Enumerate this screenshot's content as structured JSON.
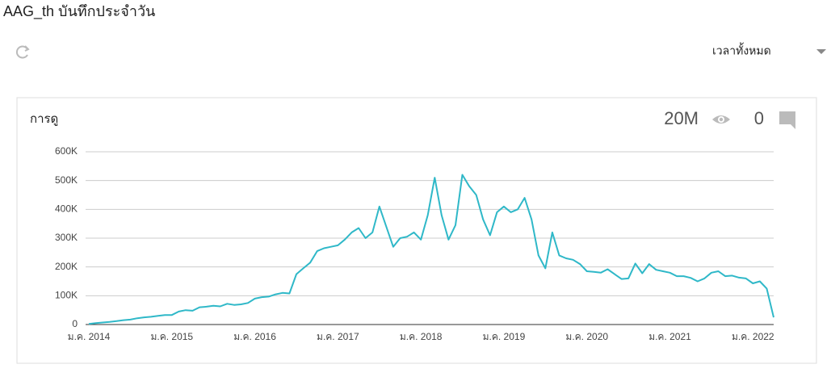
{
  "header": {
    "title": "AAG_th บันทึกประจำวัน",
    "range": "เวลาทั้งหมด"
  },
  "card": {
    "views": "20M",
    "comments": "0"
  },
  "chart_data": {
    "type": "line",
    "title": "การดู",
    "color": "#2fb8c8",
    "grid": true,
    "categories": [
      "ม.ค. 2014",
      null,
      null,
      null,
      null,
      null,
      null,
      null,
      null,
      null,
      null,
      null,
      "ม.ค. 2015",
      null,
      null,
      null,
      null,
      null,
      null,
      null,
      null,
      null,
      null,
      null,
      "ม.ค. 2016",
      null,
      null,
      null,
      null,
      null,
      null,
      null,
      null,
      null,
      null,
      null,
      "ม.ค. 2017",
      null,
      null,
      null,
      null,
      null,
      null,
      null,
      null,
      null,
      null,
      null,
      "ม.ค. 2018",
      null,
      null,
      null,
      null,
      null,
      null,
      null,
      null,
      null,
      null,
      null,
      "ม.ค. 2019",
      null,
      null,
      null,
      null,
      null,
      null,
      null,
      null,
      null,
      null,
      null,
      "ม.ค. 2020",
      null,
      null,
      null,
      null,
      null,
      null,
      null,
      null,
      null,
      null,
      null,
      "ม.ค. 2021",
      null,
      null,
      null,
      null,
      null,
      null,
      null,
      null,
      null,
      null,
      null,
      "ม.ค. 2022",
      null,
      null,
      null
    ],
    "values": [
      2000,
      5000,
      7000,
      9000,
      12000,
      15000,
      17000,
      22000,
      25000,
      27000,
      30000,
      33000,
      33000,
      45000,
      50000,
      48000,
      60000,
      62000,
      65000,
      63000,
      72000,
      68000,
      70000,
      75000,
      90000,
      95000,
      97000,
      105000,
      110000,
      108000,
      175000,
      195000,
      215000,
      255000,
      265000,
      270000,
      275000,
      295000,
      320000,
      335000,
      300000,
      320000,
      410000,
      340000,
      270000,
      300000,
      305000,
      320000,
      295000,
      380000,
      510000,
      380000,
      295000,
      345000,
      520000,
      480000,
      450000,
      365000,
      310000,
      390000,
      410000,
      390000,
      400000,
      440000,
      365000,
      240000,
      195000,
      320000,
      240000,
      230000,
      225000,
      210000,
      185000,
      183000,
      180000,
      192000,
      175000,
      158000,
      160000,
      212000,
      178000,
      210000,
      190000,
      185000,
      180000,
      168000,
      168000,
      162000,
      150000,
      160000,
      180000,
      185000,
      168000,
      170000,
      163000,
      160000,
      143000,
      150000,
      125000,
      25000
    ],
    "ylim": [
      0,
      600000
    ],
    "yticks": [
      0,
      {
        "value": 100000,
        "label": "100K"
      },
      {
        "value": 200000,
        "label": "200K"
      },
      {
        "value": 300000,
        "label": "300K"
      },
      {
        "value": 400000,
        "label": "400K"
      },
      {
        "value": 500000,
        "label": "500K"
      },
      {
        "value": 600000,
        "label": "600K"
      }
    ]
  }
}
